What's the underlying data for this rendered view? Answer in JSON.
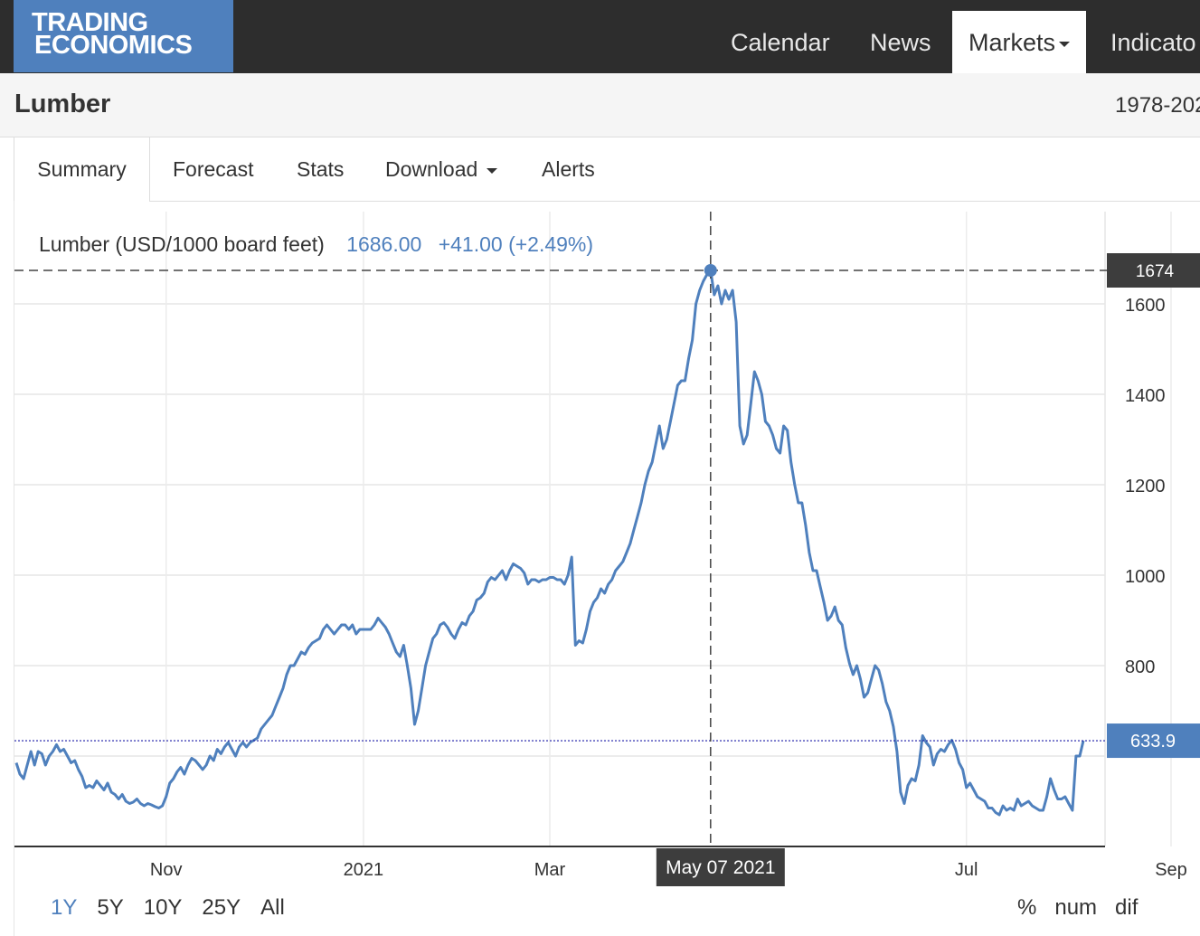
{
  "header": {
    "logo_line1": "TRADING",
    "logo_line2": "ECONOMICS",
    "nav": [
      {
        "label": "Calendar"
      },
      {
        "label": "News"
      },
      {
        "label": "Markets"
      },
      {
        "label": "Indicato"
      }
    ]
  },
  "page": {
    "title": "Lumber",
    "range": "1978-202"
  },
  "tabs": [
    {
      "label": "Summary"
    },
    {
      "label": "Forecast"
    },
    {
      "label": "Stats"
    },
    {
      "label": "Download"
    },
    {
      "label": "Alerts"
    }
  ],
  "legend": {
    "name": "Lumber (USD/1000 board feet)",
    "value": "1686.00",
    "change": "+41.00 (+2.49%)"
  },
  "crosshair": {
    "value_label": "1674",
    "date_label": "May 07 2021",
    "value": 1674
  },
  "last_price": {
    "label": "633.9",
    "value": 633.9
  },
  "periods": [
    {
      "label": "1Y"
    },
    {
      "label": "5Y"
    },
    {
      "label": "10Y"
    },
    {
      "label": "25Y"
    },
    {
      "label": "All"
    }
  ],
  "modes": [
    {
      "label": "%"
    },
    {
      "label": "num"
    },
    {
      "label": "dif"
    }
  ],
  "colors": {
    "line": "#4f80bd",
    "dark_label": "#3d3d3d",
    "nav_bg": "#2d2d2d",
    "logo_bg": "#4f80bd"
  },
  "chart_data": {
    "type": "line",
    "title": "Lumber (USD/1000 board feet)",
    "xlabel": "",
    "ylabel": "",
    "ylim": [
      400,
      1800
    ],
    "y_ticks": [
      1600,
      1400,
      1200,
      1000,
      800
    ],
    "x_ticks": [
      {
        "label": "Nov",
        "index": 41
      },
      {
        "label": "2021",
        "index": 95
      },
      {
        "label": "Mar",
        "index": 146
      },
      {
        "label": "Jul",
        "index": 260
      },
      {
        "label": "Sep",
        "index": 316
      }
    ],
    "series": [
      {
        "name": "Lumber",
        "values": [
          585,
          560,
          550,
          580,
          610,
          580,
          610,
          605,
          580,
          600,
          610,
          625,
          610,
          615,
          600,
          585,
          590,
          570,
          555,
          530,
          535,
          530,
          545,
          535,
          525,
          540,
          520,
          515,
          505,
          515,
          500,
          495,
          498,
          505,
          495,
          490,
          495,
          492,
          488,
          485,
          490,
          510,
          540,
          550,
          565,
          575,
          560,
          580,
          595,
          590,
          580,
          570,
          580,
          600,
          590,
          615,
          605,
          620,
          630,
          615,
          600,
          620,
          630,
          620,
          630,
          635,
          640,
          660,
          670,
          680,
          690,
          710,
          730,
          750,
          780,
          800,
          800,
          815,
          830,
          825,
          840,
          850,
          855,
          860,
          880,
          890,
          880,
          870,
          880,
          890,
          890,
          880,
          890,
          870,
          880,
          880,
          880,
          880,
          890,
          905,
          895,
          885,
          870,
          850,
          830,
          820,
          845,
          800,
          750,
          670,
          700,
          750,
          800,
          830,
          860,
          870,
          890,
          895,
          885,
          870,
          860,
          880,
          895,
          890,
          910,
          920,
          945,
          950,
          960,
          985,
          995,
          990,
          1000,
          1010,
          990,
          1010,
          1025,
          1020,
          1015,
          1005,
          980,
          990,
          990,
          985,
          990,
          990,
          995,
          995,
          990,
          990,
          980,
          1000,
          1040,
          845,
          855,
          850,
          880,
          920,
          940,
          950,
          970,
          960,
          980,
          990,
          1010,
          1020,
          1030,
          1050,
          1070,
          1100,
          1130,
          1160,
          1200,
          1230,
          1250,
          1290,
          1330,
          1280,
          1300,
          1340,
          1380,
          1420,
          1430,
          1430,
          1480,
          1520,
          1600,
          1630,
          1650,
          1665,
          1674,
          1620,
          1640,
          1600,
          1630,
          1610,
          1630,
          1560,
          1330,
          1290,
          1310,
          1380,
          1450,
          1430,
          1400,
          1340,
          1330,
          1310,
          1280,
          1270,
          1330,
          1320,
          1250,
          1200,
          1160,
          1160,
          1110,
          1050,
          1010,
          1010,
          975,
          940,
          900,
          910,
          930,
          900,
          890,
          840,
          805,
          780,
          800,
          770,
          730,
          740,
          770,
          800,
          790,
          760,
          720,
          700,
          665,
          610,
          520,
          495,
          535,
          550,
          545,
          580,
          645,
          630,
          620,
          580,
          605,
          615,
          610,
          625,
          635,
          615,
          585,
          570,
          530,
          540,
          525,
          510,
          505,
          500,
          485,
          485,
          475,
          470,
          490,
          480,
          485,
          480,
          505,
          490,
          495,
          500,
          490,
          485,
          480,
          480,
          510,
          550,
          525,
          505,
          505,
          510,
          495,
          480,
          600,
          600,
          633.9
        ]
      }
    ],
    "last_value": 633.9,
    "peak": {
      "date": "May 07 2021",
      "value": 1674
    }
  }
}
